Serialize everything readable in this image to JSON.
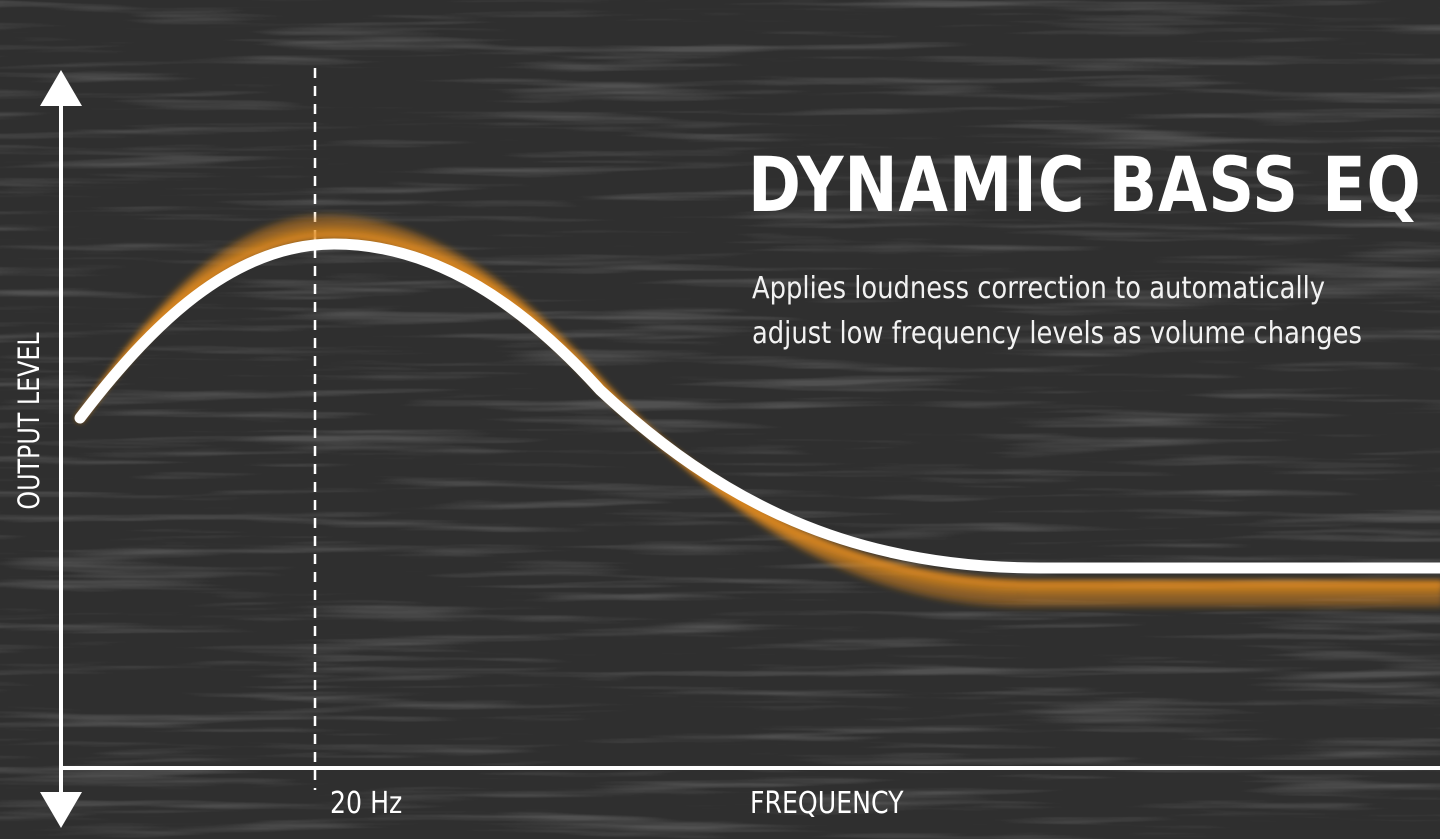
{
  "title": "DYNAMIC BASS EQ",
  "description_lines": [
    "Applies loudness correction to automatically",
    "adjust low frequency levels as volume changes"
  ],
  "axes": {
    "y_label": "OUTPUT LEVEL",
    "x_label": "FREQUENCY",
    "marker_label": "20 Hz"
  },
  "colors": {
    "background": "#2f2f2f",
    "texture": "#1a1a1a",
    "curve": "#ffffff",
    "glow": "#e08a1e",
    "axis": "#ffffff"
  }
}
